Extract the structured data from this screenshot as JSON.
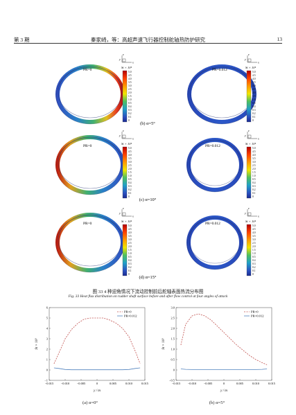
{
  "header": {
    "issue": "第 3 期",
    "title": "秦家崎，等：高超声速飞行器控制舵轴热防护研究",
    "page": "13"
  },
  "axes_labels": {
    "x": "x",
    "y": "y",
    "z": "z"
  },
  "legend": {
    "title": "St × 10³",
    "ticks": [
      "5.0",
      "4.5",
      "4.0",
      "3.5",
      "3.0",
      "2.5",
      "2.0",
      "1.5",
      "1.0",
      "0.5",
      "0.4",
      "0.3",
      "0.2",
      "0.1",
      "0"
    ]
  },
  "panels": [
    {
      "left_label": "PR=0",
      "right_label": "PR=0.012",
      "caption": "(b)  α=5°"
    },
    {
      "left_label": "PR=0",
      "right_label": "PR=0.012",
      "caption": "(c)  α=10°"
    },
    {
      "left_label": "PR=0",
      "right_label": "PR=0.012",
      "caption": "(d)  α=15°"
    }
  ],
  "figure33": {
    "caption_cn": "图 33    4 种迎角情况下流动控制前后舵轴表面热流分布图",
    "caption_en": "Fig. 33    Heat flux distribution on rudder shaft surface before and after flow control at four angles of attack"
  },
  "chart_data": [
    {
      "type": "line",
      "caption": "(a)  α=0°",
      "xlabel": "y / m",
      "ylabel": "St × 10³",
      "xlim": [
        -0.015,
        0.015
      ],
      "ylim": [
        -1,
        6
      ],
      "xticks": [
        "−0.015",
        "−0.010",
        "−0.005",
        "0",
        "0.005",
        "0.010",
        "0.015"
      ],
      "yticks": [
        "−1",
        "0",
        "1",
        "2",
        "3",
        "4",
        "5",
        "6"
      ],
      "legend_position": "top-right",
      "series": [
        {
          "name": "PR=0",
          "style": "dashed",
          "color": "#c0504d",
          "x": [
            -0.0135,
            -0.012,
            -0.01,
            -0.008,
            -0.006,
            -0.004,
            -0.002,
            0,
            0.002,
            0.004,
            0.006,
            0.008,
            0.01,
            0.012,
            0.0135
          ],
          "y": [
            0.6,
            1.6,
            3.0,
            3.9,
            4.5,
            4.9,
            5.0,
            5.0,
            5.0,
            4.8,
            4.5,
            4.0,
            3.2,
            1.8,
            0.6
          ]
        },
        {
          "name": "PR=0.012",
          "style": "solid",
          "color": "#4f81bd",
          "x": [
            -0.0135,
            -0.012,
            -0.01,
            -0.008,
            -0.006,
            -0.004,
            -0.002,
            0,
            0.002,
            0.004,
            0.006,
            0.008,
            0.01,
            0.012,
            0.0135
          ],
          "y": [
            0.2,
            0.15,
            0.05,
            0.02,
            0.02,
            0.02,
            0.02,
            0.02,
            0.02,
            0.02,
            0.02,
            0.02,
            0.05,
            0.15,
            0.2
          ]
        }
      ]
    },
    {
      "type": "line",
      "caption": "(b)  α=5°",
      "xlabel": "y / m",
      "ylabel": "St × 10³",
      "xlim": [
        -0.015,
        0.015
      ],
      "ylim": [
        -0.5,
        3.0
      ],
      "xticks": [
        "−0.015",
        "−0.010",
        "−0.005",
        "0",
        "0.005",
        "0.010",
        "0.015"
      ],
      "yticks": [
        "−0.5",
        "0",
        "0.5",
        "1.0",
        "1.5",
        "2.0",
        "2.5",
        "3.0"
      ],
      "legend_position": "top-right",
      "series": [
        {
          "name": "PR=0",
          "style": "dashed",
          "color": "#c0504d",
          "x": [
            -0.0135,
            -0.012,
            -0.01,
            -0.008,
            -0.006,
            -0.004,
            -0.002,
            0,
            0.002,
            0.004,
            0.006,
            0.008,
            0.01,
            0.012,
            0.0135
          ],
          "y": [
            1.2,
            2.2,
            2.6,
            2.7,
            2.6,
            2.4,
            2.1,
            1.8,
            1.5,
            1.2,
            0.95,
            0.7,
            0.5,
            0.35,
            0.25
          ]
        },
        {
          "name": "PR=0.012",
          "style": "solid",
          "color": "#4f81bd",
          "x": [
            -0.0135,
            -0.012,
            -0.01,
            -0.008,
            -0.006,
            -0.004,
            -0.002,
            0,
            0.002,
            0.004,
            0.006,
            0.008,
            0.01,
            0.012,
            0.0135
          ],
          "y": [
            0.05,
            0.03,
            0.02,
            0.02,
            0.02,
            0.02,
            0.02,
            0.02,
            0.02,
            0.02,
            0.02,
            0.02,
            0.02,
            0.03,
            0.05
          ]
        }
      ]
    }
  ]
}
